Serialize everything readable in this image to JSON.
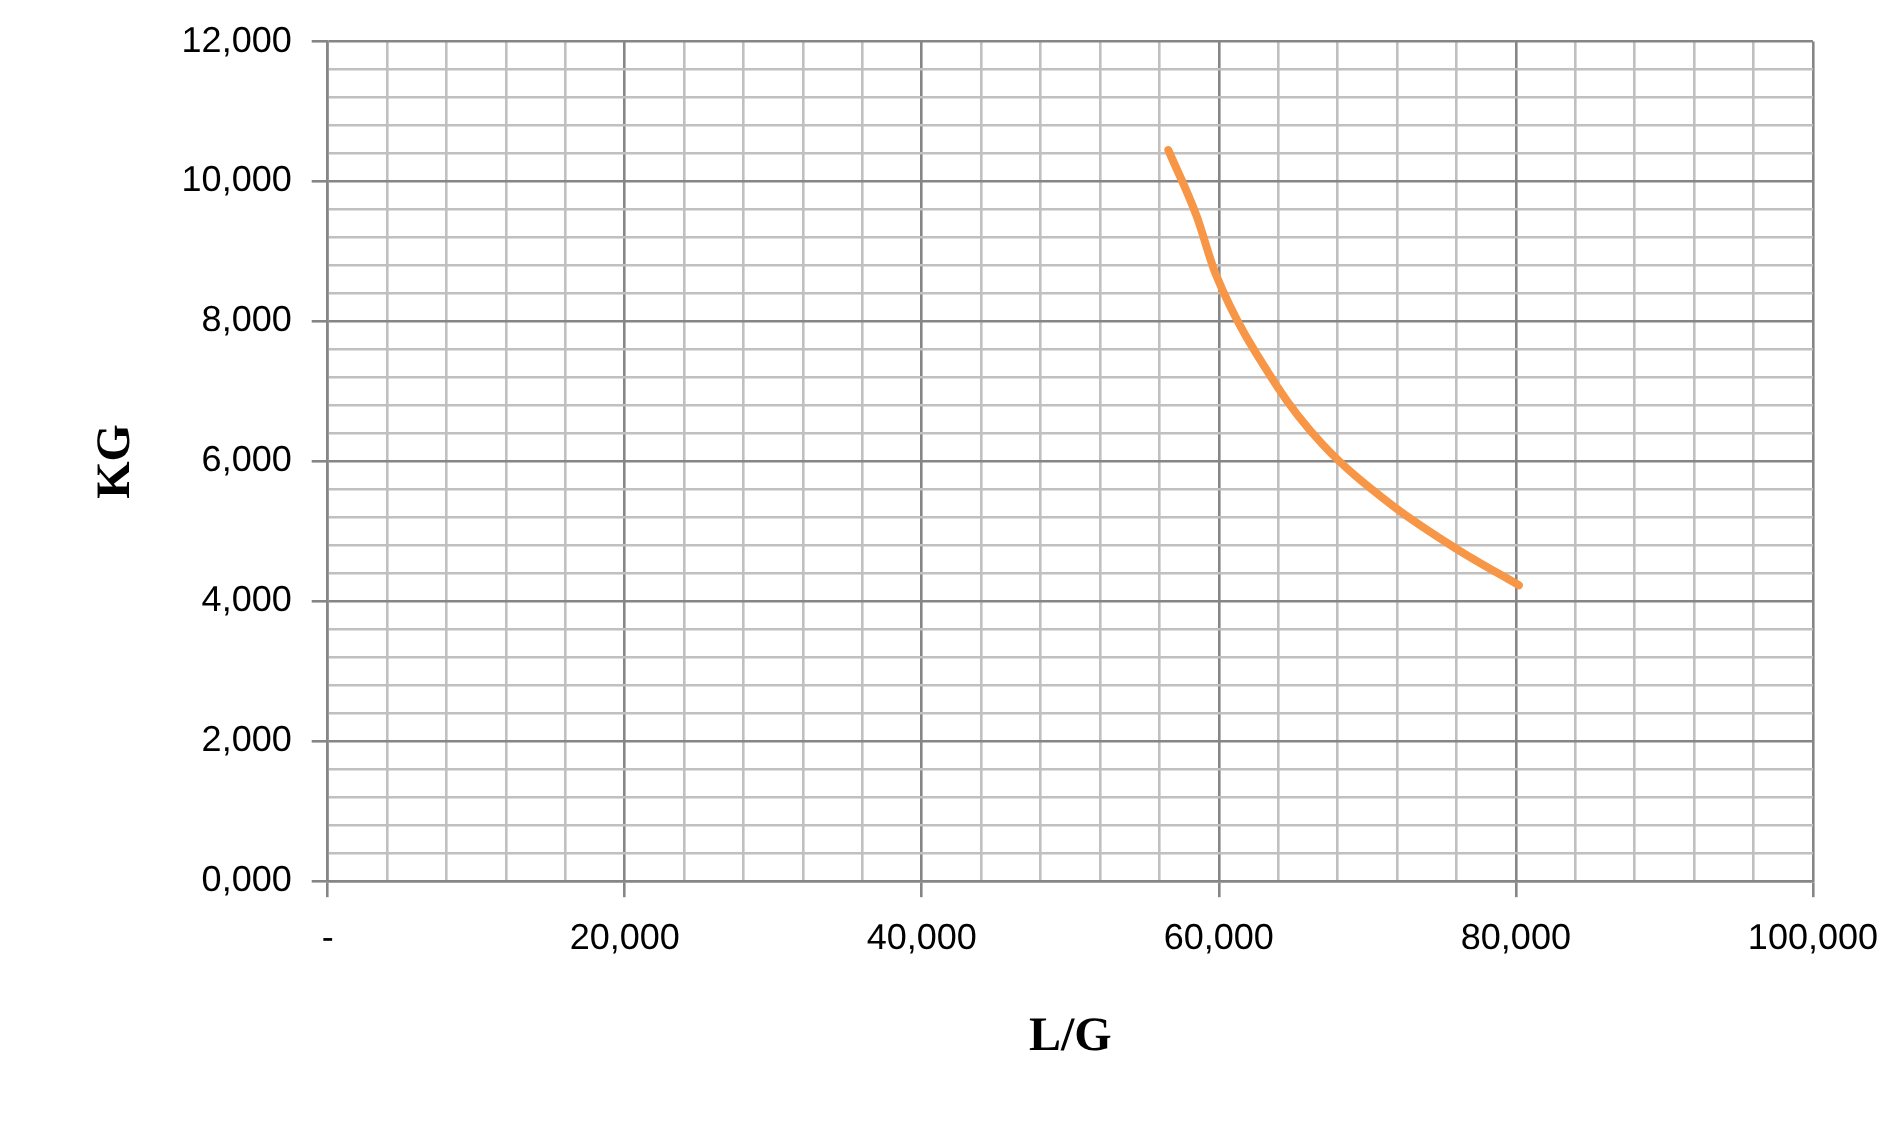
{
  "chart_data": {
    "type": "line",
    "xlabel": "L/G",
    "ylabel": "KG",
    "x": [
      56600,
      58500,
      59800,
      63900,
      67000,
      71500,
      76000,
      80200
    ],
    "series": [
      {
        "color": "#f79646",
        "values": [
          10450,
          9510,
          8670,
          7080,
          6240,
          5400,
          4750,
          4230
        ]
      }
    ],
    "xlim": [
      0,
      100000
    ],
    "xticks": [
      {
        "value": 0,
        "label": "-"
      },
      {
        "value": 4000,
        "label": null
      },
      {
        "value": 8000,
        "label": null
      },
      {
        "value": 12000,
        "label": null
      },
      {
        "value": 16000,
        "label": null
      },
      {
        "value": 20000,
        "label": "20,000"
      },
      {
        "value": 24000,
        "label": null
      },
      {
        "value": 28000,
        "label": null
      },
      {
        "value": 32000,
        "label": null
      },
      {
        "value": 36000,
        "label": null
      },
      {
        "value": 40000,
        "label": "40,000"
      },
      {
        "value": 44000,
        "label": null
      },
      {
        "value": 48000,
        "label": null
      },
      {
        "value": 52000,
        "label": null
      },
      {
        "value": 56000,
        "label": null
      },
      {
        "value": 60000,
        "label": "60,000"
      },
      {
        "value": 64000,
        "label": null
      },
      {
        "value": 68000,
        "label": null
      },
      {
        "value": 72000,
        "label": null
      },
      {
        "value": 76000,
        "label": null
      },
      {
        "value": 80000,
        "label": "80,000"
      },
      {
        "value": 84000,
        "label": null
      },
      {
        "value": 88000,
        "label": null
      },
      {
        "value": 92000,
        "label": null
      },
      {
        "value": 96000,
        "label": null
      },
      {
        "value": 100000,
        "label": "100,000"
      }
    ],
    "ylim": [
      0,
      12000
    ],
    "yticks": [
      {
        "value": 0,
        "label": "0,000"
      },
      {
        "value": 400,
        "label": null
      },
      {
        "value": 800,
        "label": null
      },
      {
        "value": 1200,
        "label": null
      },
      {
        "value": 1600,
        "label": null
      },
      {
        "value": 2000,
        "label": "2,000"
      },
      {
        "value": 2400,
        "label": null
      },
      {
        "value": 2800,
        "label": null
      },
      {
        "value": 3200,
        "label": null
      },
      {
        "value": 3600,
        "label": null
      },
      {
        "value": 4000,
        "label": "4,000"
      },
      {
        "value": 4400,
        "label": null
      },
      {
        "value": 4800,
        "label": null
      },
      {
        "value": 5200,
        "label": null
      },
      {
        "value": 5600,
        "label": null
      },
      {
        "value": 6000,
        "label": "6,000"
      },
      {
        "value": 6400,
        "label": null
      },
      {
        "value": 6800,
        "label": null
      },
      {
        "value": 7200,
        "label": null
      },
      {
        "value": 7600,
        "label": null
      },
      {
        "value": 8000,
        "label": "8,000"
      },
      {
        "value": 8400,
        "label": null
      },
      {
        "value": 8800,
        "label": null
      },
      {
        "value": 9200,
        "label": null
      },
      {
        "value": 9600,
        "label": null
      },
      {
        "value": 10000,
        "label": "10,000"
      },
      {
        "value": 10400,
        "label": null
      },
      {
        "value": 10800,
        "label": null
      },
      {
        "value": 11200,
        "label": null
      },
      {
        "value": 11600,
        "label": null
      },
      {
        "value": 12000,
        "label": "12,000"
      }
    ],
    "grid": true,
    "marker": "none",
    "line_style": "solid"
  }
}
